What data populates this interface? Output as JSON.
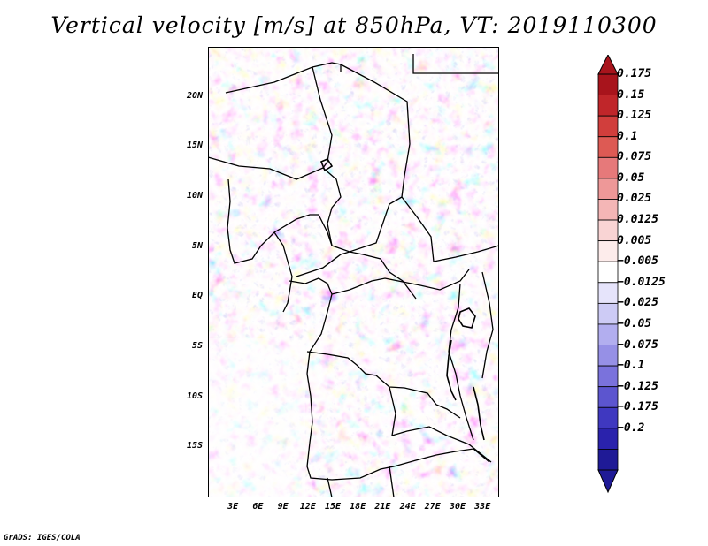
{
  "title": "Vertical velocity [m/s] at 850hPa, VT: 2019110300",
  "footer": "GrADS: IGES/COLA",
  "map": {
    "lon_range": [
      0,
      35
    ],
    "lat_range": [
      -20,
      25
    ],
    "lat_ticks": [
      {
        "label": "20N",
        "lat": 20
      },
      {
        "label": "15N",
        "lat": 15
      },
      {
        "label": "10N",
        "lat": 10
      },
      {
        "label": "5N",
        "lat": 5
      },
      {
        "label": "EQ",
        "lat": 0
      },
      {
        "label": "5S",
        "lat": -5
      },
      {
        "label": "10S",
        "lat": -10
      },
      {
        "label": "15S",
        "lat": -15
      }
    ],
    "lon_ticks": [
      {
        "label": "3E",
        "lon": 3
      },
      {
        "label": "6E",
        "lon": 6
      },
      {
        "label": "9E",
        "lon": 9
      },
      {
        "label": "12E",
        "lon": 12
      },
      {
        "label": "15E",
        "lon": 15
      },
      {
        "label": "18E",
        "lon": 18
      },
      {
        "label": "21E",
        "lon": 21
      },
      {
        "label": "24E",
        "lon": 24
      },
      {
        "label": "27E",
        "lon": 27
      },
      {
        "label": "30E",
        "lon": 30
      },
      {
        "label": "33E",
        "lon": 33
      }
    ]
  },
  "colorbar": {
    "levels": [
      "0.175",
      "0.15",
      "0.125",
      "0.1",
      "0.075",
      "0.05",
      "0.025",
      "0.0125",
      "0.005",
      "−0.005",
      "−0.0125",
      "−0.025",
      "−0.05",
      "−0.075",
      "−0.1",
      "−0.125",
      "−0.175",
      "−0.2"
    ],
    "colors": [
      "#a8141c",
      "#c0262a",
      "#d13e3c",
      "#dd5a54",
      "#e6797a",
      "#ee9898",
      "#f4b6b6",
      "#f9d4d4",
      "#fdeceb",
      "#ffffff",
      "#e6e4fb",
      "#cdcbf5",
      "#b2aeef",
      "#9690e6",
      "#7a72dc",
      "#5c55cf",
      "#3f38c0",
      "#2a22ac",
      "#1f1a96"
    ],
    "top_color": "#a8141c",
    "bottom_color": "#1f1a96"
  }
}
